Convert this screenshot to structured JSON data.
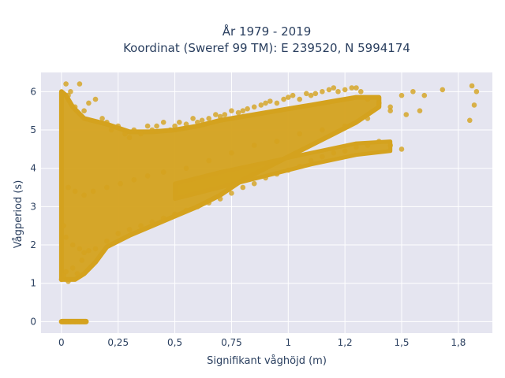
{
  "chart_data": {
    "type": "scatter",
    "title": "År 1979 - 2019",
    "subtitle": "Koordinat (Sweref 99 TM): E 239520, N 5994174",
    "xlabel": "Signifikant våghöjd (m)",
    "ylabel": "Vågperiod (s)",
    "xlim": [
      -0.09,
      1.9
    ],
    "ylim": [
      -0.3,
      6.5
    ],
    "x_ticks": [
      0,
      0.25,
      0.5,
      0.75,
      1,
      1.25,
      1.5,
      1.75
    ],
    "x_tick_labels": [
      "0",
      "0,25",
      "0,5",
      "0,75",
      "1",
      "1,2",
      "1,5",
      "1,8"
    ],
    "y_ticks": [
      0,
      1,
      2,
      3,
      4,
      5,
      6
    ],
    "y_tick_labels": [
      "0",
      "1",
      "2",
      "3",
      "4",
      "5",
      "6"
    ],
    "grid": true,
    "marker_color": "#D4A21E",
    "background_color": "#E5E5F0",
    "series": [
      {
        "x": [
          0.0,
          0.02,
          0.04,
          0.06,
          0.08,
          0.1,
          0.0,
          0.01,
          0.02,
          0.03,
          0.05,
          0.07,
          0.09,
          0.02,
          0.03,
          0.04,
          0.06,
          0.08,
          0.1,
          0.12,
          0.15,
          0.18,
          0.2,
          0.22,
          0.25,
          0.28,
          0.3,
          0.32,
          0.35,
          0.38,
          0.4,
          0.42,
          0.45,
          0.48,
          0.5,
          0.52,
          0.55,
          0.58,
          0.6,
          0.62,
          0.65,
          0.68,
          0.7,
          0.72,
          0.75,
          0.78,
          0.8,
          0.82,
          0.85,
          0.88,
          0.9,
          0.92,
          0.95,
          0.98,
          1.0,
          1.02,
          1.05,
          1.08,
          1.1,
          1.12,
          1.15,
          1.18,
          1.2,
          1.22,
          1.25,
          1.28,
          1.3,
          1.32,
          1.35,
          1.4,
          1.45,
          1.5,
          1.55,
          1.6,
          1.68,
          1.8,
          1.81,
          1.82,
          1.83,
          0.01,
          0.02,
          0.05,
          0.08,
          0.1,
          0.12,
          0.15,
          0.2,
          0.25,
          0.3,
          0.35,
          0.4,
          0.45,
          0.5,
          0.55,
          0.6,
          0.65,
          0.7,
          0.75,
          0.8,
          0.85,
          0.9,
          0.95,
          1.0,
          1.05,
          1.1,
          1.15,
          1.2,
          1.25,
          1.3,
          1.35,
          1.4,
          1.45,
          1.5,
          0.03,
          0.06,
          0.1,
          0.14,
          0.2,
          0.26,
          0.32,
          0.38,
          0.45,
          0.55,
          0.65,
          0.75,
          0.85,
          0.95,
          1.05,
          1.15,
          1.25,
          1.35,
          1.45,
          1.52,
          1.58
        ],
        "y": [
          0,
          0,
          0,
          0,
          0,
          0,
          1.1,
          1.2,
          1.3,
          1.05,
          1.4,
          1.25,
          1.6,
          6.2,
          5.9,
          6.0,
          5.6,
          6.2,
          5.5,
          5.7,
          5.8,
          5.3,
          5.2,
          5.0,
          5.1,
          4.9,
          4.8,
          5.0,
          4.9,
          5.1,
          5.0,
          5.1,
          5.2,
          5.0,
          5.1,
          5.2,
          5.15,
          5.3,
          5.2,
          5.25,
          5.3,
          5.4,
          5.35,
          5.4,
          5.5,
          5.45,
          5.5,
          5.55,
          5.6,
          5.65,
          5.7,
          5.75,
          5.7,
          5.8,
          5.85,
          5.9,
          5.8,
          5.95,
          5.9,
          5.95,
          6.0,
          6.05,
          6.1,
          6.0,
          6.05,
          6.1,
          6.1,
          6.0,
          5.8,
          5.7,
          5.6,
          5.9,
          6.0,
          5.9,
          6.05,
          5.25,
          6.15,
          5.65,
          6.0,
          2.5,
          2.2,
          2.0,
          1.9,
          1.8,
          1.85,
          1.9,
          2.1,
          2.3,
          2.4,
          2.5,
          2.6,
          2.7,
          2.8,
          2.9,
          3.0,
          3.1,
          3.2,
          3.35,
          3.5,
          3.6,
          3.75,
          3.85,
          3.95,
          4.05,
          4.2,
          4.3,
          4.4,
          4.45,
          4.55,
          4.6,
          4.7,
          4.6,
          4.5,
          3.5,
          3.4,
          3.3,
          3.4,
          3.5,
          3.6,
          3.7,
          3.8,
          3.9,
          4.0,
          4.2,
          4.4,
          4.6,
          4.7,
          4.9,
          5.0,
          5.1,
          5.3,
          5.5,
          5.4,
          5.5
        ]
      }
    ]
  }
}
